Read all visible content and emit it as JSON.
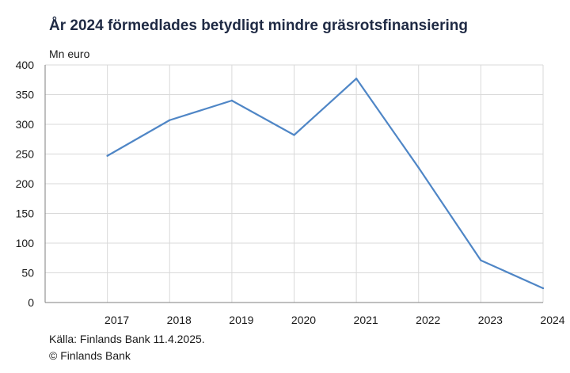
{
  "chart_data": {
    "type": "line",
    "title": "År 2024 förmedlades betydligt mindre gräsrotsfinansiering",
    "ylabel": "Mn euro",
    "xlabel": "",
    "categories": [
      "2017",
      "2018",
      "2019",
      "2020",
      "2021",
      "2022",
      "2023",
      "2024"
    ],
    "series": [
      {
        "values": [
          247,
          307,
          340,
          282,
          377,
          227,
          71,
          24
        ]
      }
    ],
    "ylim": [
      0,
      400
    ],
    "yticks": [
      0,
      50,
      100,
      150,
      200,
      250,
      300,
      350,
      400
    ],
    "grid": true,
    "line_color": "#4f86c6"
  },
  "footer": {
    "source": "Källa: Finlands Bank 11.4.2025.",
    "copyright": "© Finlands Bank"
  }
}
